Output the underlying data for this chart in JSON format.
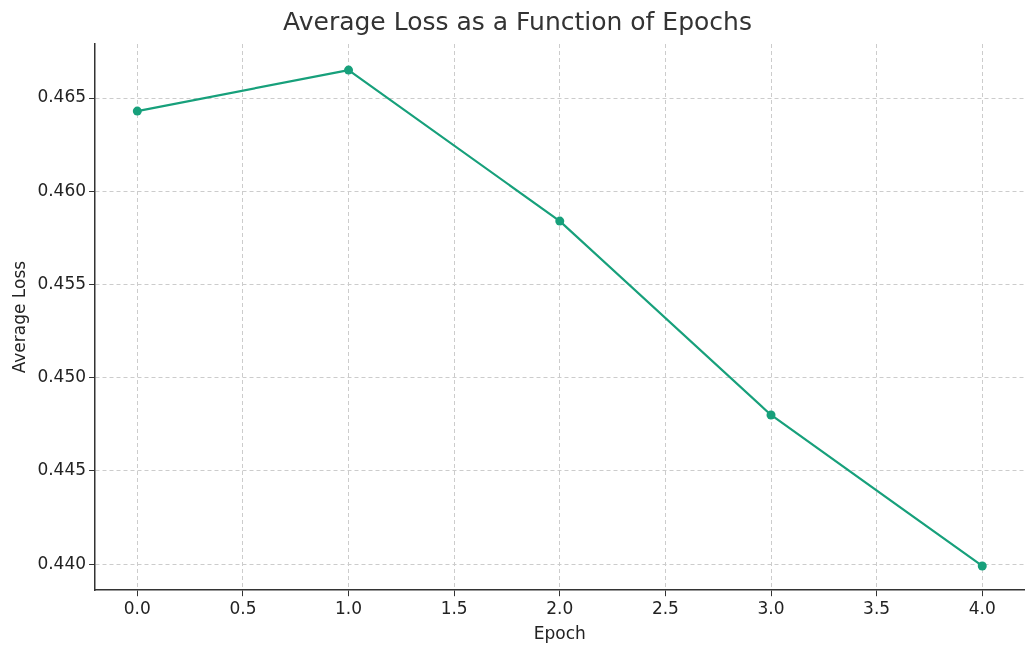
{
  "chart_data": {
    "type": "line",
    "title": "Average Loss as a Function of Epochs",
    "xlabel": "Epoch",
    "ylabel": "Average Loss",
    "x": [
      0,
      1,
      2,
      3,
      4
    ],
    "series": [
      {
        "color": "#17a07b",
        "values": [
          0.4643,
          0.4665,
          0.4584,
          0.448,
          0.4399
        ]
      }
    ],
    "xlim": [
      -0.2,
      4.2
    ],
    "xticks": [
      {
        "value": 0,
        "label": "0.0"
      },
      {
        "value": 0.5,
        "label": "0.5"
      },
      {
        "value": 1,
        "label": "1.0"
      },
      {
        "value": 1.5,
        "label": "1.5"
      },
      {
        "value": 2,
        "label": "2.0"
      },
      {
        "value": 2.5,
        "label": "2.5"
      },
      {
        "value": 3,
        "label": "3.0"
      },
      {
        "value": 3.5,
        "label": "3.5"
      },
      {
        "value": 4,
        "label": "4.0"
      }
    ],
    "ylim": [
      0.4386,
      0.4679
    ],
    "yticks": [
      {
        "value": 0.44,
        "label": "0.440"
      },
      {
        "value": 0.445,
        "label": "0.445"
      },
      {
        "value": 0.45,
        "label": "0.450"
      },
      {
        "value": 0.455,
        "label": "0.455"
      },
      {
        "value": 0.46,
        "label": "0.460"
      },
      {
        "value": 0.465,
        "label": "0.465"
      }
    ],
    "grid": true,
    "legend": false,
    "marker": "circle",
    "line_style": "solid"
  }
}
